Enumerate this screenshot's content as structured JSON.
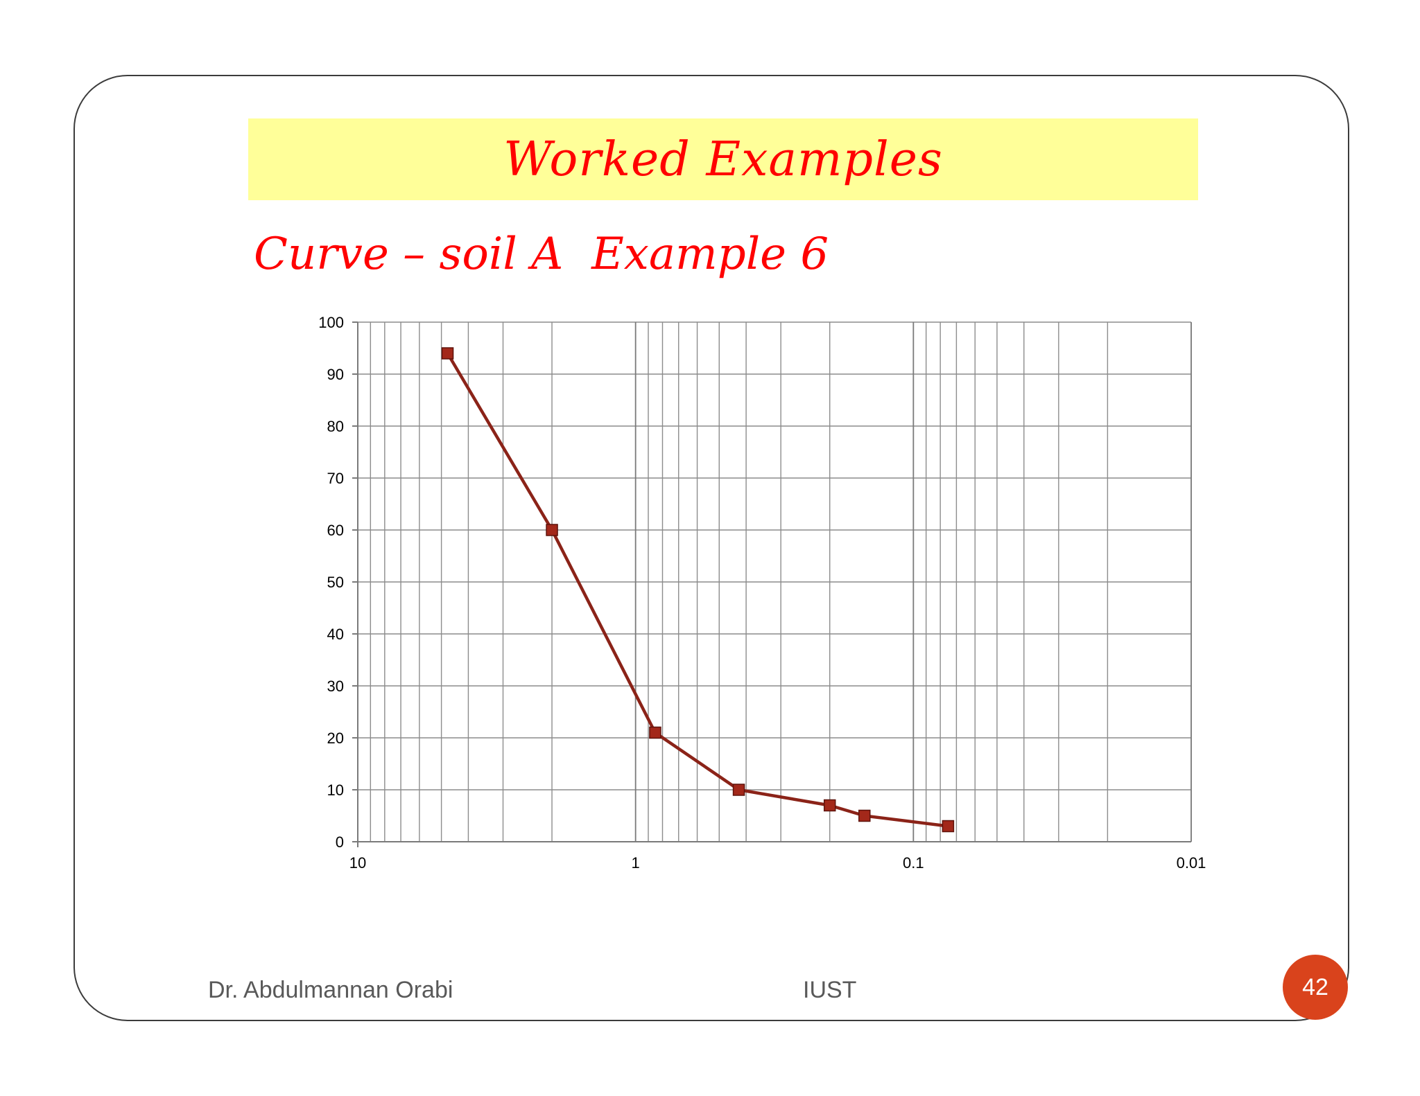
{
  "slide": {
    "title": "Worked Examples",
    "subtitle": "Curve – soil A  Example 6",
    "footer_author": "Dr. Abdulmannan Orabi",
    "footer_center": "IUST",
    "page_number": "42",
    "colors": {
      "title_band": "#ffff99",
      "title_text": "#ff0000",
      "page_badge": "#d9431c"
    }
  },
  "chart_data": {
    "type": "line",
    "title": "",
    "xlabel": "",
    "ylabel": "",
    "x_scale": "log",
    "x_reversed": true,
    "xlim": [
      10,
      0.01
    ],
    "ylim": [
      0,
      100
    ],
    "grid": true,
    "x_tick_labels": [
      "10",
      "1",
      "0.1",
      "0.01"
    ],
    "y_tick_labels": [
      "0",
      "10",
      "20",
      "30",
      "40",
      "50",
      "60",
      "70",
      "80",
      "90",
      "100"
    ],
    "series": [
      {
        "color": "#8b2318",
        "marker": "square",
        "points": [
          {
            "x": 4.75,
            "y": 94
          },
          {
            "x": 2.0,
            "y": 60
          },
          {
            "x": 0.85,
            "y": 21
          },
          {
            "x": 0.425,
            "y": 10
          },
          {
            "x": 0.2,
            "y": 7
          },
          {
            "x": 0.15,
            "y": 5
          },
          {
            "x": 0.075,
            "y": 3
          }
        ]
      }
    ]
  }
}
